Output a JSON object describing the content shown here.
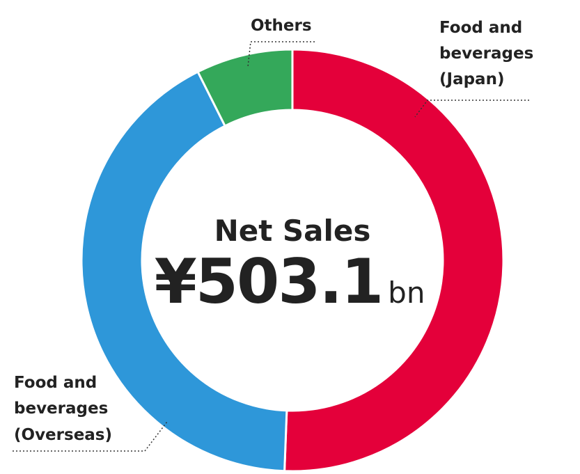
{
  "chart_data": {
    "type": "pie",
    "donut": true,
    "center": {
      "title": "Net Sales",
      "value": "¥503.1",
      "unit": "bn"
    },
    "slices": [
      {
        "label_lines": [
          "Food and",
          "beverages",
          "(Japan)"
        ],
        "value": 50.6,
        "color": "#e4003a"
      },
      {
        "label_lines": [
          "Food and",
          "beverages",
          "(Overseas)"
        ],
        "value": 42.0,
        "color": "#2e97d9"
      },
      {
        "label_lines": [
          "Others"
        ],
        "value": 7.4,
        "color": "#34a85a"
      }
    ]
  }
}
